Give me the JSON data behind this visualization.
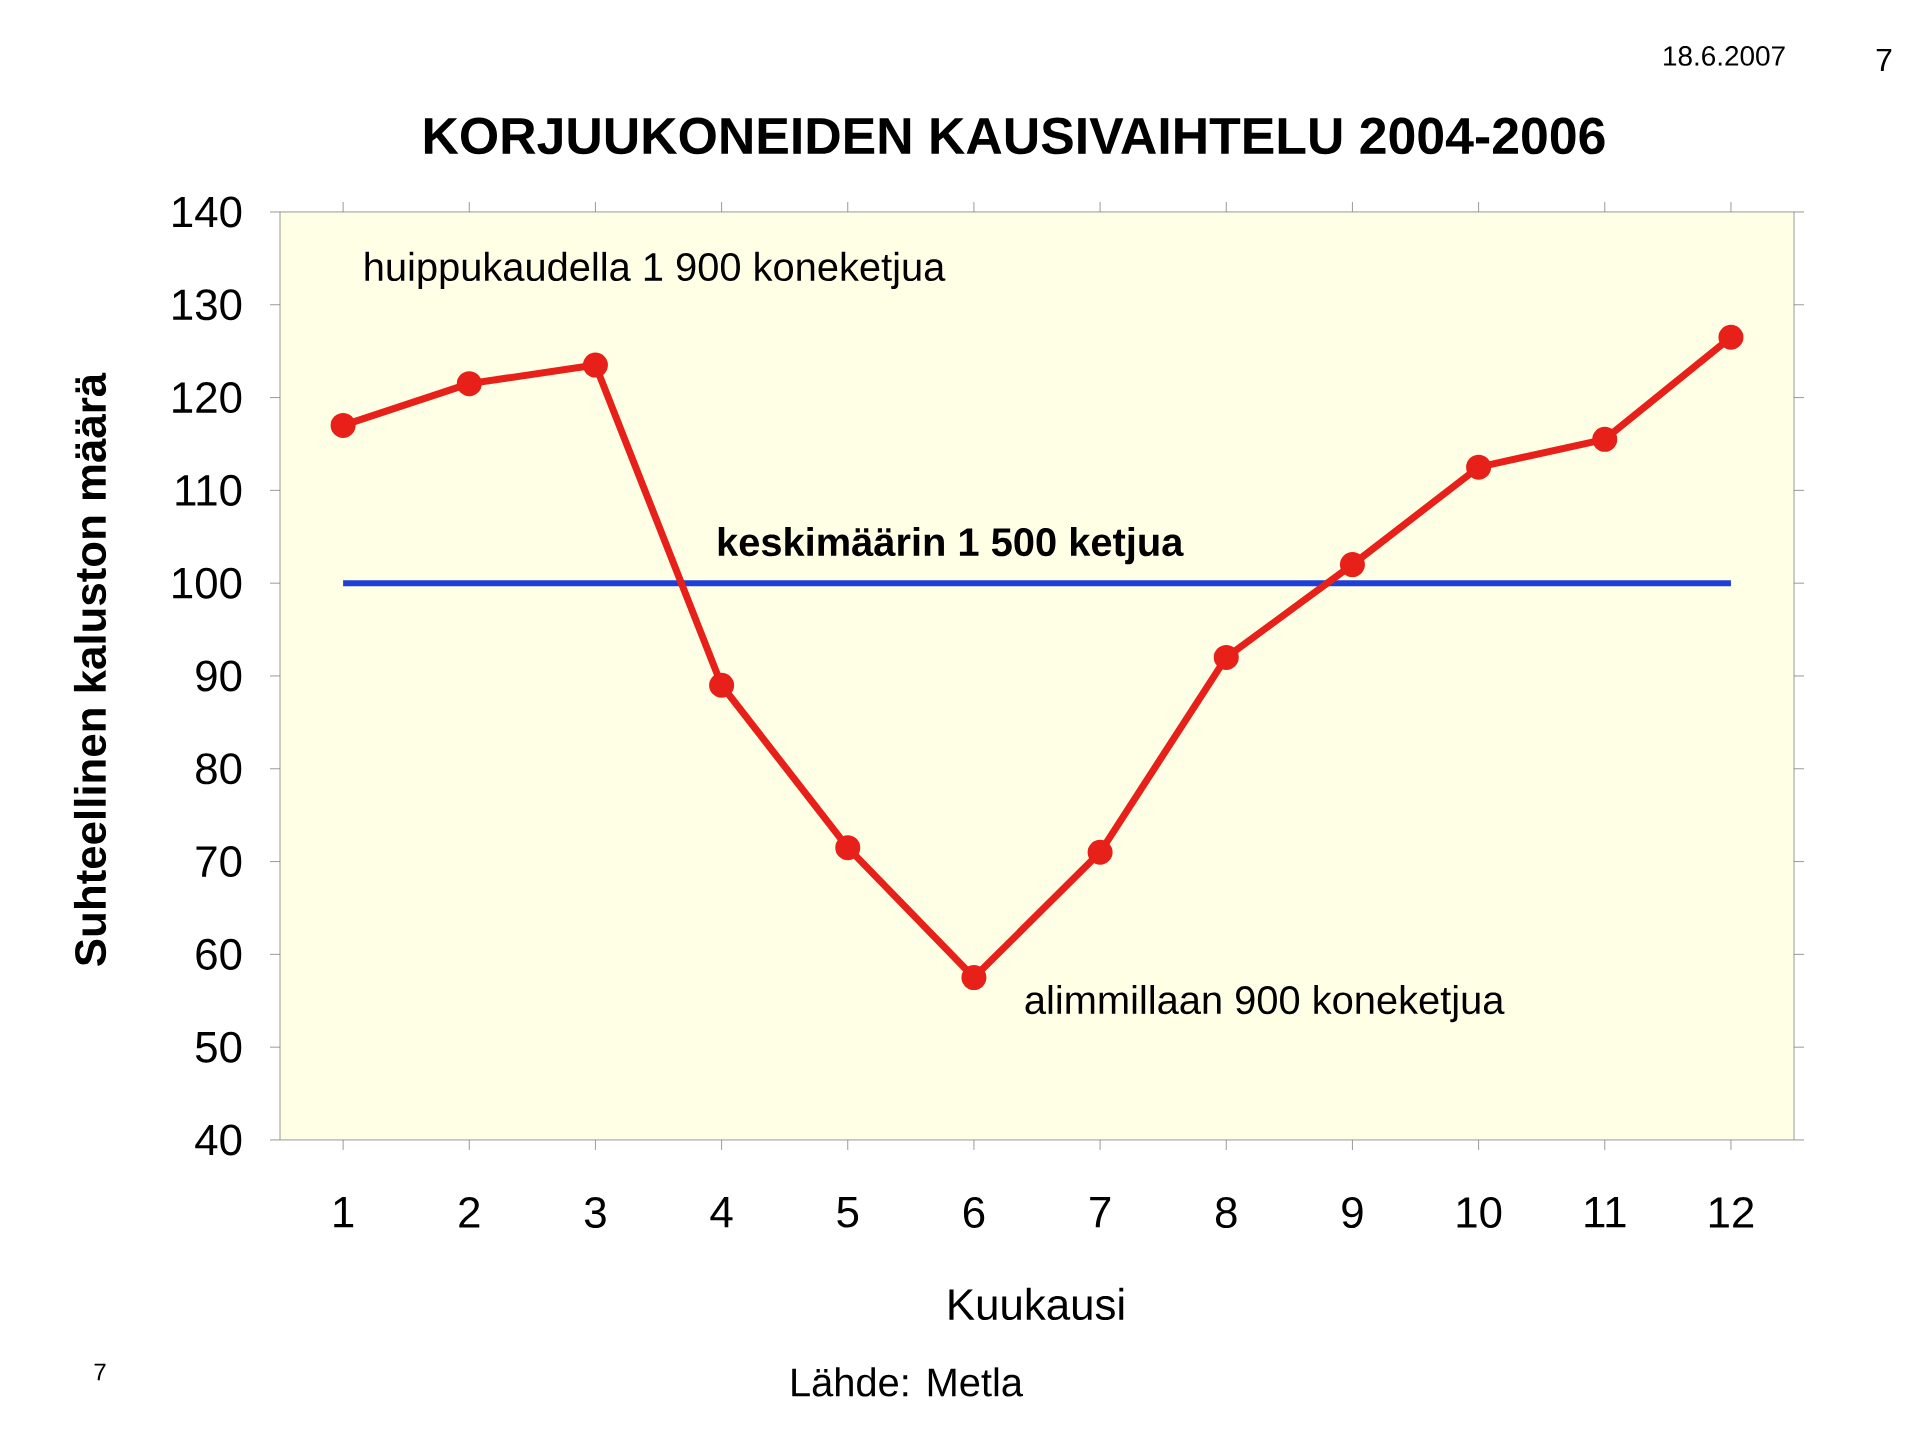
{
  "chart_data": {
    "type": "line",
    "title": "KORJUUKONEIDEN KAUSIVAIHTELU 2004-2006",
    "xlabel": "Kuukausi",
    "ylabel": "Suhteellinen kaluston määrä",
    "categories": [
      "1",
      "2",
      "3",
      "4",
      "5",
      "6",
      "7",
      "8",
      "9",
      "10",
      "11",
      "12"
    ],
    "series": [
      {
        "color": "#e8201a",
        "values": [
          117,
          121.5,
          123.5,
          89,
          71.5,
          57.5,
          71,
          92,
          102,
          112.5,
          115.5,
          126.5
        ]
      }
    ],
    "ylim": [
      40,
      140
    ],
    "yticks": [
      40,
      50,
      60,
      70,
      80,
      90,
      100,
      110,
      120,
      130,
      140
    ],
    "marker": "circle",
    "line_style": "solid",
    "ref_lines": [
      {
        "axis": "y",
        "value": 100,
        "label": "keskimäärin 1 500 ketjua",
        "color": "#1f3fd6"
      }
    ],
    "annotations": [
      "huippukaudella 1 900 koneketjua",
      "alimmillaan 900 koneketjua",
      "Lähde: Metla",
      "18.6.2007",
      "7",
      "7"
    ]
  }
}
